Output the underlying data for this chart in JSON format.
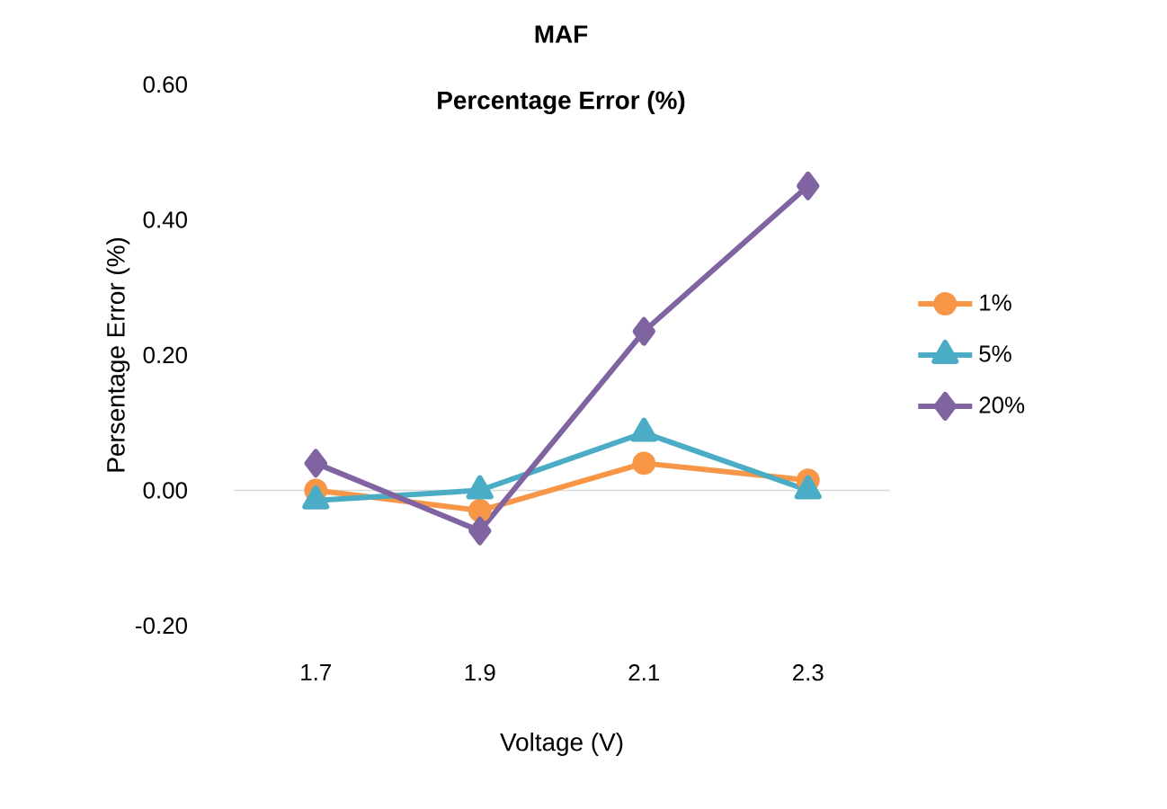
{
  "chart_data": {
    "type": "line",
    "title": "MAF",
    "subtitle": "Percentage Error (%)",
    "xlabel": "Voltage (V)",
    "ylabel": "Persentage Error (%)",
    "categories": [
      "1.7",
      "1.9",
      "2.1",
      "2.3"
    ],
    "series": [
      {
        "name": "1%",
        "color": "#f79646",
        "marker": "circle",
        "values": [
          0.0,
          -0.03,
          0.04,
          0.015
        ]
      },
      {
        "name": "5%",
        "color": "#4bacc6",
        "marker": "triangle",
        "values": [
          -0.015,
          0.0,
          0.085,
          0.0
        ]
      },
      {
        "name": "20%",
        "color": "#8064a2",
        "marker": "diamond",
        "values": [
          0.04,
          -0.06,
          0.235,
          0.45
        ]
      }
    ],
    "ylim": [
      -0.2,
      0.6
    ],
    "yticks": [
      {
        "value": -0.2,
        "label": "-0.20"
      },
      {
        "value": 0,
        "label": "0.00"
      },
      {
        "value": 0.2,
        "label": "0.20"
      },
      {
        "value": 0.4,
        "label": "0.40"
      },
      {
        "value": 0.6,
        "label": "0.60"
      }
    ],
    "ref_lines": [
      {
        "axis": "y",
        "value": 0,
        "color": "#d9d9d9"
      }
    ],
    "legend": "right",
    "line_style": "solid"
  }
}
